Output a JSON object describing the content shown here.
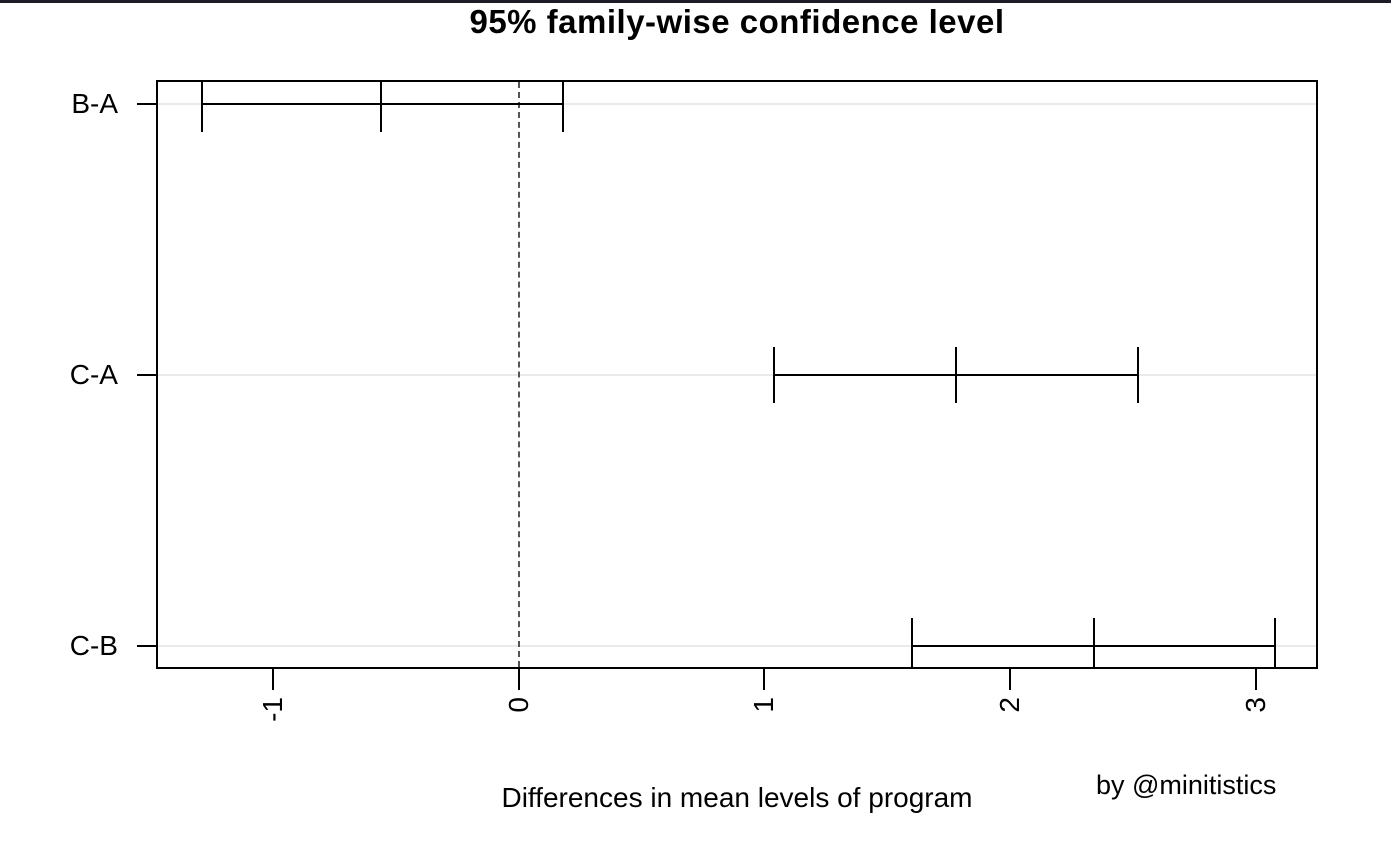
{
  "title": "95% family-wise confidence level",
  "xlabel": "Differences in mean levels of program",
  "attribution": "by @minitistics",
  "chart_data": {
    "type": "interval",
    "title": "95% family-wise confidence level",
    "xlabel": "Differences in mean levels of program",
    "ylabel": "",
    "categories": [
      "B-A",
      "C-A",
      "C-B"
    ],
    "intervals": [
      {
        "label": "B-A",
        "lower": -1.29,
        "center": -0.56,
        "upper": 0.18,
        "row_frac": 0.038
      },
      {
        "label": "C-A",
        "lower": 1.04,
        "center": 1.78,
        "upper": 2.52,
        "row_frac": 0.501
      },
      {
        "label": "C-B",
        "lower": 1.6,
        "center": 2.34,
        "upper": 3.08,
        "row_frac": 0.964
      }
    ],
    "x_ticks": [
      {
        "label": "-1",
        "value": -1
      },
      {
        "label": "0",
        "value": 0
      },
      {
        "label": "1",
        "value": 1
      },
      {
        "label": "2",
        "value": 2
      },
      {
        "label": "3",
        "value": 3
      }
    ],
    "xlim": [
      -1.468,
      3.245
    ],
    "reference_line_x": 0,
    "grid": "horizontal-light",
    "legend": "none",
    "colors": {
      "line": "#000000",
      "grid": "#eaeaea",
      "reference_dashed": "#555555",
      "top_border": "#1c1c26",
      "background": "#ffffff"
    }
  }
}
